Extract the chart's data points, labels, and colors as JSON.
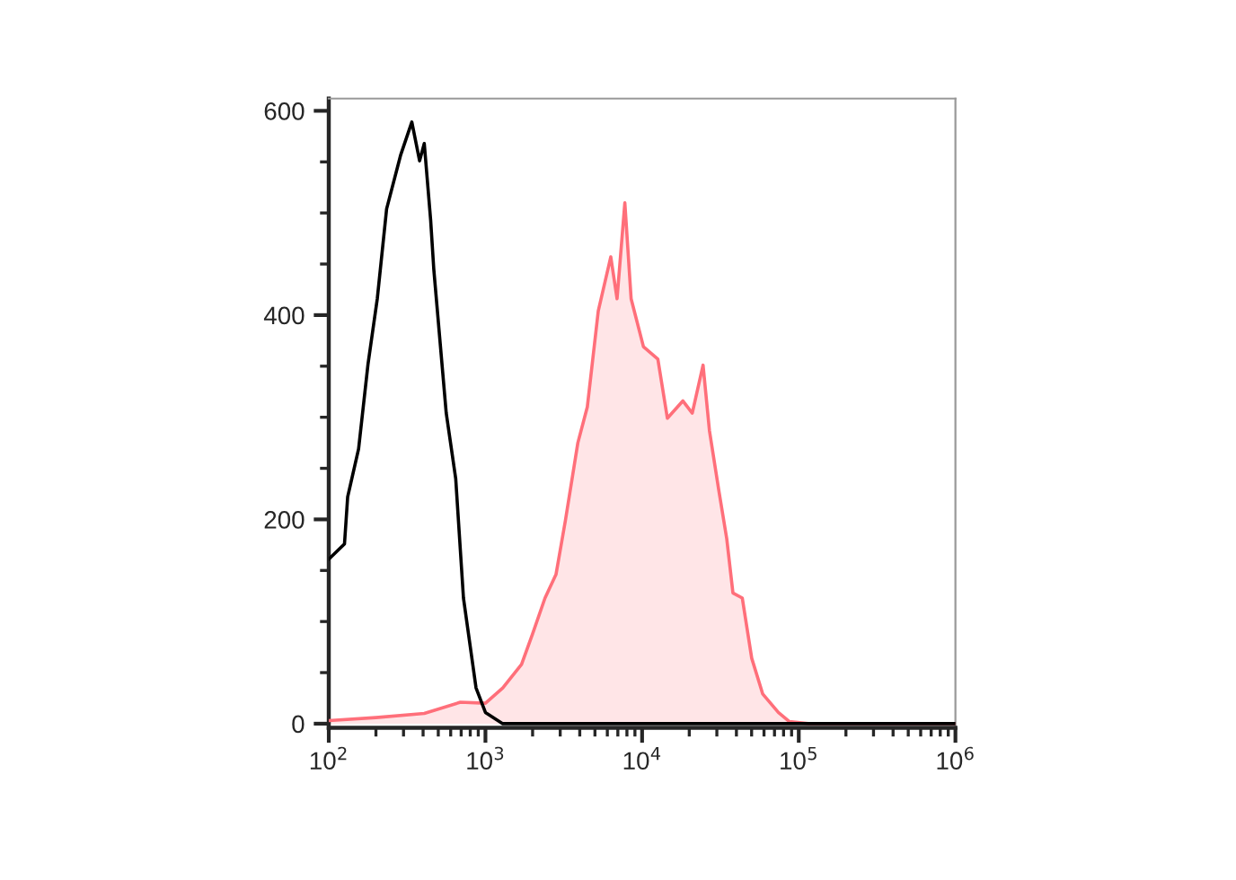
{
  "chart_data": {
    "type": "line",
    "log": "x",
    "grid": false,
    "legend": false,
    "xlim": [
      100,
      1000000
    ],
    "xticks": [
      {
        "value": 100,
        "label": "10$^{2}$"
      },
      {
        "value": 1000,
        "label": "10$^{3}$"
      },
      {
        "value": 10000,
        "label": "10$^{4}$"
      },
      {
        "value": 100000,
        "label": "10$^{5}$"
      },
      {
        "value": 1000000,
        "label": "10$^{6}$"
      }
    ],
    "ylim": [
      -4,
      612
    ],
    "yticks": [
      0,
      {
        "value": 50,
        "label": null
      },
      {
        "value": 100,
        "label": null
      },
      {
        "value": 150,
        "label": null
      },
      200,
      {
        "value": 250,
        "label": null
      },
      {
        "value": 300,
        "label": null
      },
      {
        "value": 350,
        "label": null
      },
      400,
      {
        "value": 450,
        "label": null
      },
      {
        "value": 500,
        "label": null
      },
      {
        "value": 550,
        "label": null
      },
      600
    ],
    "series": [
      {
        "type": "area",
        "color": "#ff6f7a",
        "x": [
          100,
          200,
          407,
          692,
          1000,
          1290,
          1700,
          2000,
          2400,
          2820,
          3240,
          3890,
          4470,
          5250,
          6310,
          6920,
          7760,
          8510,
          10200,
          12600,
          14500,
          18200,
          20900,
          24500,
          26900,
          30900,
          34700,
          38000,
          43600,
          50100,
          58900,
          74100,
          87100,
          115000,
          1000000
        ],
        "values": [
          3,
          6,
          10,
          21,
          20,
          35,
          58,
          88,
          123,
          146,
          199,
          275,
          310,
          404,
          457,
          416,
          510,
          416,
          369,
          357,
          299,
          316,
          304,
          351,
          287,
          228,
          181,
          128,
          123,
          64,
          29,
          11,
          2,
          0,
          0
        ]
      },
      {
        "color": "#000000",
        "x": [
          100,
          126,
          132,
          155,
          178,
          204,
          234,
          288,
          339,
          380,
          407,
          447,
          468,
          562,
          646,
          724,
          871,
          1000,
          1290,
          3160,
          31600,
          1000000
        ],
        "values": [
          161,
          176,
          222,
          269,
          352,
          416,
          504,
          557,
          589,
          551,
          568,
          493,
          445,
          304,
          240,
          123,
          35,
          11,
          0,
          0,
          0,
          0
        ]
      }
    ]
  }
}
